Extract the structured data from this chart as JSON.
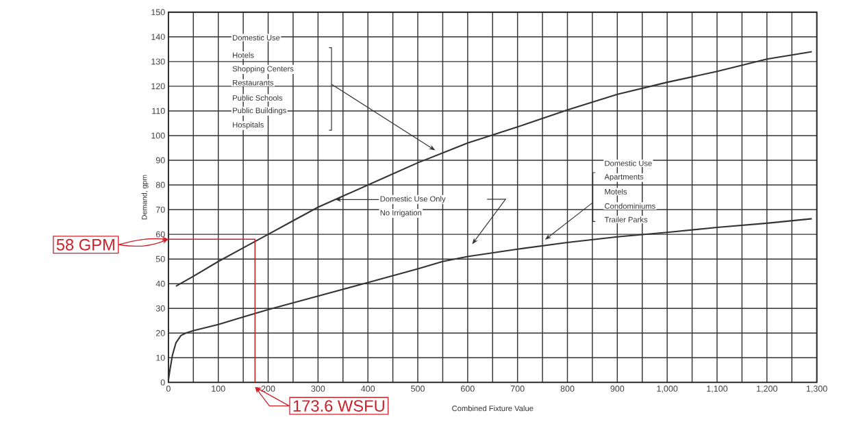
{
  "chart_data": {
    "type": "line",
    "xlabel": "Combined Fixture Value",
    "ylabel": "Demand, gpm",
    "xlim": [
      0,
      1300
    ],
    "ylim": [
      0,
      150
    ],
    "xticks": [
      0,
      {
        "value": 50,
        "label": null
      },
      100,
      {
        "value": 150,
        "label": null
      },
      200,
      {
        "value": 250,
        "label": null
      },
      300,
      {
        "value": 350,
        "label": null
      },
      400,
      {
        "value": 450,
        "label": null
      },
      500,
      {
        "value": 550,
        "label": null
      },
      600,
      {
        "value": 650,
        "label": null
      },
      700,
      {
        "value": 750,
        "label": null
      },
      800,
      {
        "value": 850,
        "label": null
      },
      900,
      {
        "value": 950,
        "label": null
      },
      {
        "value": 1000,
        "label": "1,000"
      },
      {
        "value": 1050,
        "label": null
      },
      {
        "value": 1100,
        "label": "1,100"
      },
      {
        "value": 1150,
        "label": null
      },
      {
        "value": 1200,
        "label": "1,200"
      },
      {
        "value": 1250,
        "label": null
      },
      {
        "value": 1300,
        "label": "1,300"
      }
    ],
    "yticks": [
      0,
      10,
      20,
      30,
      40,
      50,
      60,
      70,
      80,
      90,
      100,
      110,
      120,
      130,
      140,
      150
    ],
    "grid": true,
    "marker": "none",
    "line_style": "solid",
    "series": [
      {
        "color": "#333333",
        "x": [
          15,
          50,
          100,
          150,
          200,
          250,
          300,
          350,
          400,
          450,
          500,
          550,
          600,
          646,
          700,
          800,
          900,
          1000,
          1100,
          1200,
          1290
        ],
        "values": [
          39,
          43,
          49,
          54.5,
          60,
          65.5,
          71,
          75.5,
          80,
          84.5,
          89,
          93,
          97,
          100,
          103.5,
          110.4,
          116.7,
          121.6,
          126,
          131,
          134
        ]
      },
      {
        "color": "#333333",
        "x": [
          0,
          3,
          8,
          15,
          25,
          35,
          50,
          100,
          150,
          200,
          300,
          400,
          500,
          550,
          600,
          700,
          800,
          900,
          1000,
          1100,
          1200,
          1290
        ],
        "values": [
          1,
          5,
          11,
          16,
          19,
          20,
          21,
          23.5,
          26.5,
          29.5,
          35,
          40.5,
          46,
          49,
          51,
          54,
          56.7,
          59,
          60.8,
          62.8,
          64.5,
          66.3
        ]
      },
      {
        "color": "#d0202a",
        "x": [
          0,
          173.6,
          173.6
        ],
        "values": [
          58,
          58,
          0
        ]
      }
    ],
    "annotations": [
      "Domestic Use",
      "Hotels",
      "Shopping Centers",
      "Restaurants",
      "Public Schools",
      "Public Buildings",
      "Hospitals",
      {
        "text": "Domestic Use Only",
        "x": 334,
        "y": 74.1
      },
      "No Irrigation",
      "Domestic Use",
      "Apartments",
      "Motels",
      "Condominiums",
      "Trailer Parks",
      {
        "text": "58 GPM",
        "x": 0,
        "y": 58
      },
      {
        "text": "173.6 WSFU",
        "x": 173.6,
        "y": 0
      }
    ]
  }
}
